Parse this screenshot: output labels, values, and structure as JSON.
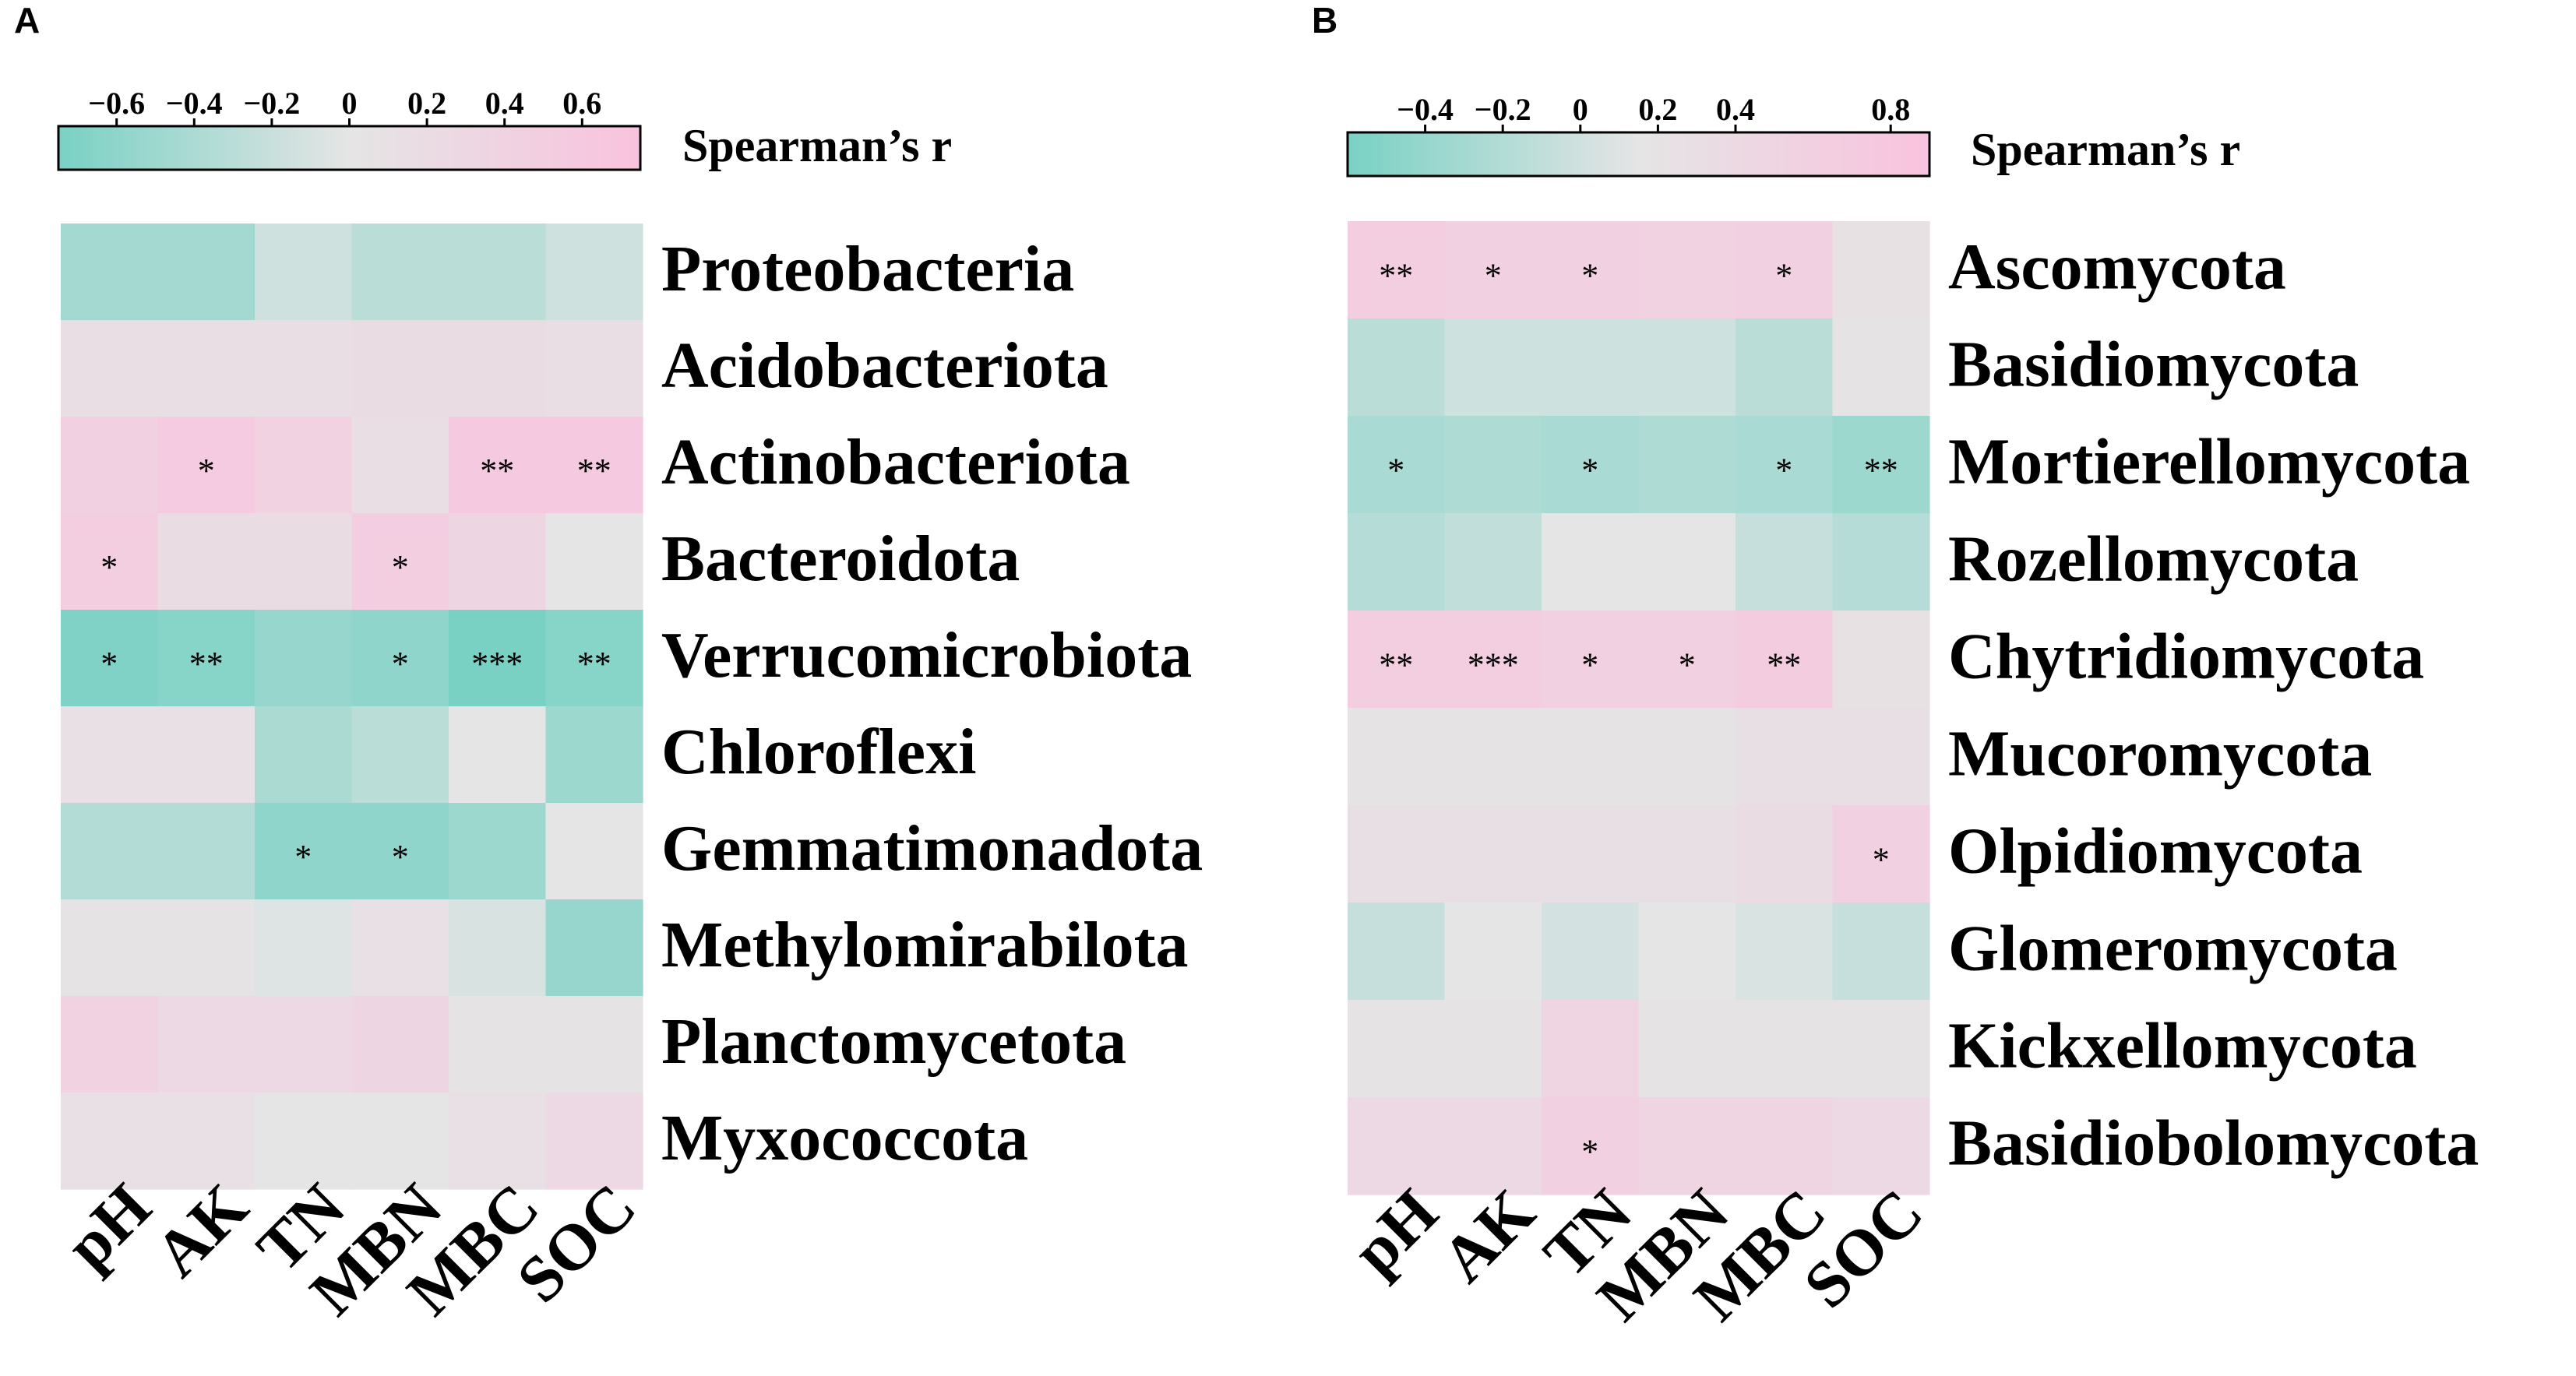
{
  "colorscale": {
    "negative": "#79d1c4",
    "zero": "#e5e5e5",
    "positive": "#f9c2de"
  },
  "chart_data": [
    {
      "type": "heatmap",
      "panel": "A",
      "colorbar": {
        "title": "Spearman’s r",
        "ticks": [
          "−0.6",
          "−0.4",
          "−0.2",
          "0",
          "0.2",
          "0.4",
          "0.6"
        ],
        "tick_values": [
          -0.6,
          -0.4,
          -0.2,
          0,
          0.2,
          0.4,
          0.6
        ],
        "range": [
          -0.75,
          0.75
        ]
      },
      "columns": [
        "pH",
        "AK",
        "TN",
        "MBN",
        "MBC",
        "SOC"
      ],
      "rows": [
        "Proteobacteria",
        "Acidobacteriota",
        "Actinobacteriota",
        "Bacteroidota",
        "Verrucomicrobiota",
        "Chloroflexi",
        "Gemmatimonadota",
        "Methylomirabilota",
        "Planctomycetota",
        "Myxococcota"
      ],
      "values": [
        [
          -0.45,
          -0.45,
          -0.15,
          -0.3,
          -0.3,
          -0.15
        ],
        [
          0.15,
          0.15,
          0.15,
          0.2,
          0.2,
          0.15
        ],
        [
          0.45,
          0.55,
          0.4,
          0.15,
          0.6,
          0.6
        ],
        [
          0.5,
          0.2,
          0.2,
          0.5,
          0.35,
          0.0
        ],
        [
          -0.7,
          -0.65,
          -0.55,
          -0.6,
          -0.75,
          -0.65
        ],
        [
          0.1,
          0.1,
          -0.4,
          -0.3,
          0.0,
          -0.5
        ],
        [
          -0.35,
          -0.35,
          -0.6,
          -0.6,
          -0.5,
          0.0
        ],
        [
          0.05,
          0.05,
          -0.05,
          0.1,
          -0.1,
          -0.55
        ],
        [
          0.4,
          0.25,
          0.25,
          0.35,
          0.05,
          0.05
        ],
        [
          0.1,
          0.1,
          0.0,
          0.0,
          0.1,
          0.25
        ]
      ],
      "significance": [
        [
          "",
          "",
          "",
          "",
          "",
          ""
        ],
        [
          "",
          "",
          "",
          "",
          "",
          ""
        ],
        [
          "",
          "*",
          "",
          "",
          "**",
          "**"
        ],
        [
          "*",
          "",
          "",
          "*",
          "",
          ""
        ],
        [
          "*",
          "**",
          "",
          "*",
          "***",
          "**"
        ],
        [
          "",
          "",
          "",
          "",
          "",
          ""
        ],
        [
          "",
          "",
          "*",
          "*",
          "",
          ""
        ],
        [
          "",
          "",
          "",
          "",
          "",
          ""
        ],
        [
          "",
          "",
          "",
          "",
          "",
          ""
        ],
        [
          "",
          "",
          "",
          "",
          "",
          ""
        ]
      ]
    },
    {
      "type": "heatmap",
      "panel": "B",
      "colorbar": {
        "title": "Spearman’s r",
        "ticks": [
          "−0.4",
          "−0.2",
          "0",
          "0.2",
          "0.4",
          "0.8"
        ],
        "tick_values": [
          -0.4,
          -0.2,
          0,
          0.2,
          0.4,
          0.8
        ],
        "range": [
          -0.6,
          0.9
        ]
      },
      "columns": [
        "pH",
        "AK",
        "TN",
        "MBN",
        "MBC",
        "SOC"
      ],
      "rows": [
        "Ascomycota",
        "Basidiomycota",
        "Mortierellomycota",
        "Rozellomycota",
        "Chytridiomycota",
        "Mucoromycota",
        "Olpidiomycota",
        "Glomeromycota",
        "Kickxellomycota",
        "Basidiobolomycota"
      ],
      "values": [
        [
          0.6,
          0.55,
          0.55,
          0.5,
          0.55,
          0.1
        ],
        [
          -0.35,
          -0.2,
          -0.2,
          -0.2,
          -0.35,
          0.05
        ],
        [
          -0.5,
          -0.45,
          -0.5,
          -0.45,
          -0.5,
          -0.6
        ],
        [
          -0.4,
          -0.3,
          0.0,
          0.0,
          -0.25,
          -0.4
        ],
        [
          0.6,
          0.6,
          0.55,
          0.55,
          0.65,
          0.1
        ],
        [
          0.05,
          0.05,
          0.05,
          0.05,
          0.15,
          0.15
        ],
        [
          0.15,
          0.15,
          0.15,
          0.15,
          0.2,
          0.55
        ],
        [
          -0.25,
          0.0,
          -0.15,
          0.0,
          -0.1,
          -0.25
        ],
        [
          0.05,
          0.05,
          0.45,
          0.05,
          0.05,
          0.05
        ],
        [
          0.3,
          0.3,
          0.55,
          0.45,
          0.45,
          0.3
        ]
      ],
      "significance": [
        [
          "**",
          "*",
          "*",
          "",
          "*",
          ""
        ],
        [
          "",
          "",
          "",
          "",
          "",
          ""
        ],
        [
          "*",
          "",
          "*",
          "",
          "*",
          "**"
        ],
        [
          "",
          "",
          "",
          "",
          "",
          ""
        ],
        [
          "**",
          "***",
          "*",
          "*",
          "**",
          ""
        ],
        [
          "",
          "",
          "",
          "",
          "",
          ""
        ],
        [
          "",
          "",
          "",
          "",
          "",
          "*"
        ],
        [
          "",
          "",
          "",
          "",
          "",
          ""
        ],
        [
          "",
          "",
          "",
          "",
          "",
          ""
        ],
        [
          "",
          "",
          "*",
          "",
          "",
          ""
        ]
      ]
    }
  ]
}
